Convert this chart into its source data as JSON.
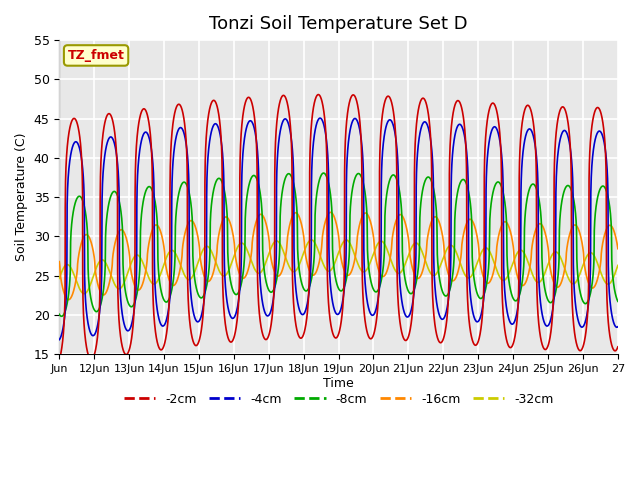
{
  "title": "Tonzi Soil Temperature Set D",
  "xlabel": "Time",
  "ylabel": "Soil Temperature (C)",
  "ylim": [
    15,
    55
  ],
  "yticks": [
    15,
    20,
    25,
    30,
    35,
    40,
    45,
    50,
    55
  ],
  "xtick_labels": [
    "Jun",
    "12Jun",
    "13Jun",
    "14Jun",
    "15Jun",
    "16Jun",
    "17Jun",
    "18Jun",
    "19Jun",
    "20Jun",
    "21Jun",
    "22Jun",
    "23Jun",
    "24Jun",
    "25Jun",
    "26Jun",
    "27"
  ],
  "legend_entries": [
    "-2cm",
    "-4cm",
    "-8cm",
    "-16cm",
    "-32cm"
  ],
  "line_colors": [
    "#cc0000",
    "#0000cc",
    "#00aa00",
    "#ff8800",
    "#cccc00"
  ],
  "annotation_text": "TZ_fmet",
  "annotation_color": "#cc0000",
  "annotation_bg": "#ffffcc",
  "bg_color": "#e8e8e8",
  "grid_color": "#ffffff",
  "n_days": 16,
  "pts_per_day": 240
}
